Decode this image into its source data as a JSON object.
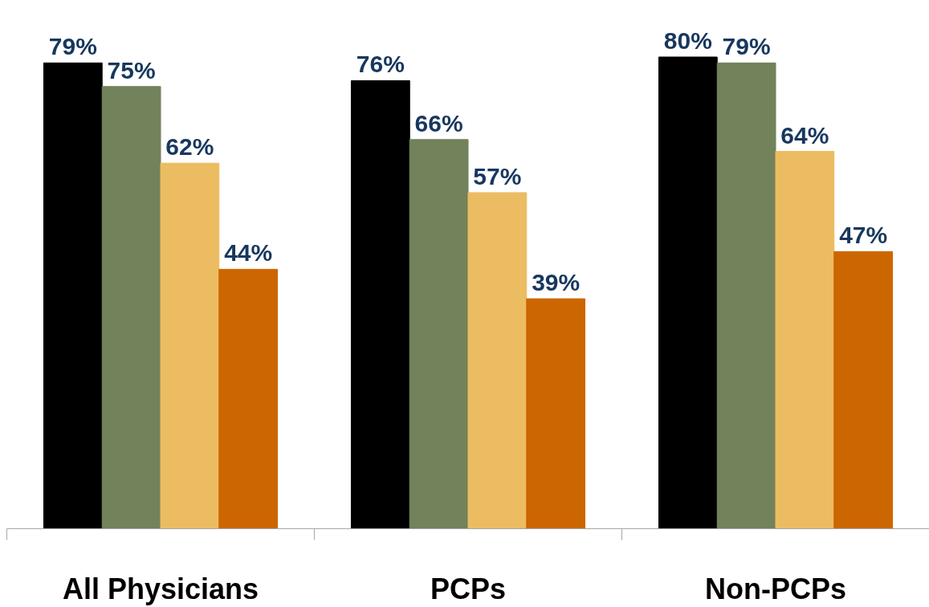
{
  "chart_data": {
    "type": "bar",
    "categories": [
      "All Physicians",
      "PCPs",
      "Non-PCPs"
    ],
    "series": [
      {
        "color": "#000000",
        "values": [
          79,
          76,
          80
        ],
        "value_labels": [
          "79%",
          "76%",
          "80%"
        ]
      },
      {
        "color": "#72825a",
        "values": [
          75,
          66,
          79
        ],
        "value_labels": [
          "75%",
          "66%",
          "79%"
        ]
      },
      {
        "color": "#ecbc62",
        "values": [
          62,
          57,
          64
        ],
        "value_labels": [
          "62%",
          "57%",
          "64%"
        ]
      },
      {
        "color": "#cc6600",
        "values": [
          44,
          39,
          47
        ],
        "value_labels": [
          "44%",
          "39%",
          "47%"
        ]
      }
    ]
  }
}
